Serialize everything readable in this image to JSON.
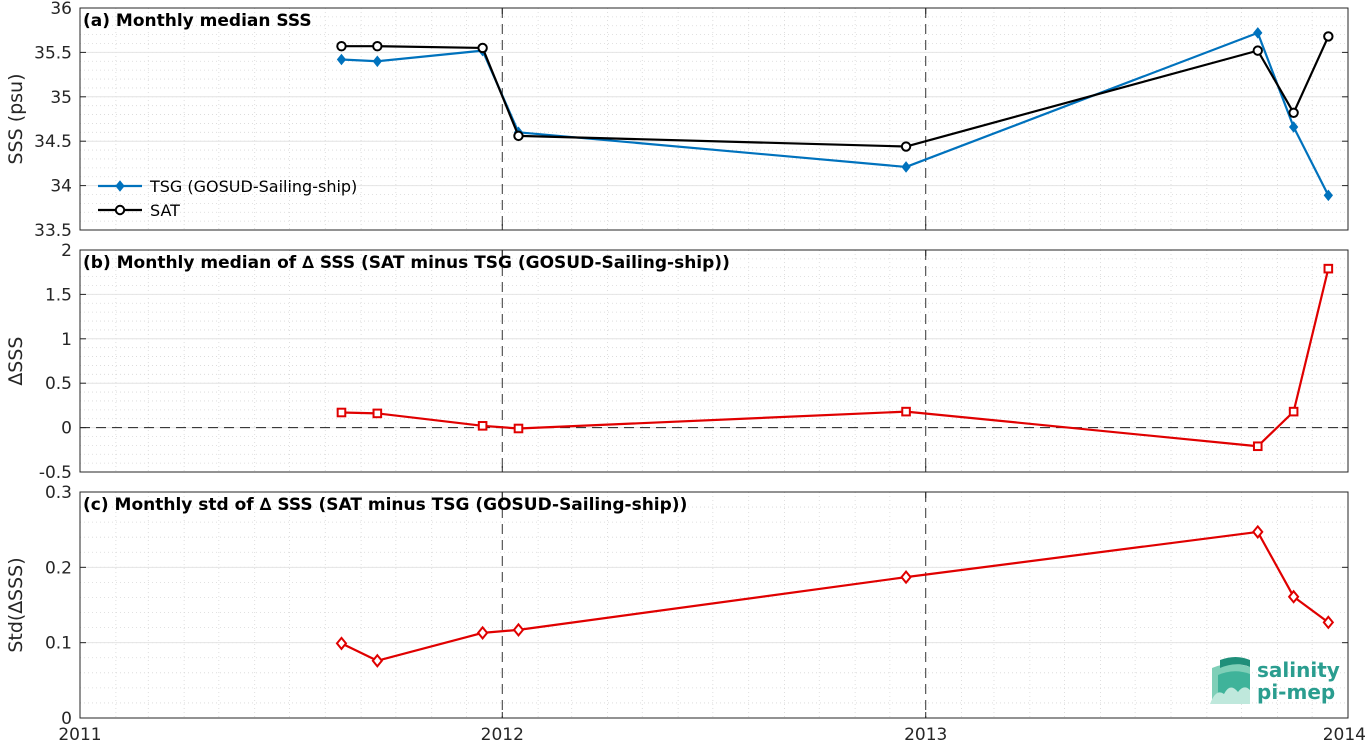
{
  "colors": {
    "tsg": "#0072BD",
    "sat": "#000000",
    "delta": "#E00000",
    "logo": "#2a9d8f"
  },
  "x_axis": {
    "range": [
      "2011-01-01",
      "2014-01-01"
    ],
    "tick_labels": [
      "2011",
      "2012",
      "2013",
      "2014"
    ],
    "year_lines": [
      "2012-01-01",
      "2013-01-01"
    ]
  },
  "logo": {
    "line1": "salinity",
    "line2": "pi-mep"
  },
  "chart_data": [
    {
      "type": "line",
      "panel": "a",
      "title": "(a) Monthly median SSS",
      "ylabel": "SSS (psu)",
      "ylim": [
        33.5,
        36
      ],
      "yticks": [
        33.5,
        34,
        34.5,
        35,
        35.5,
        36
      ],
      "ytick_labels": [
        "33.5",
        "34",
        "34.5",
        "35",
        "35.5",
        "36"
      ],
      "legend": "upper-left",
      "series": [
        {
          "name": "TSG (GOSUD-Sailing-ship)",
          "color": "#0072BD",
          "marker": "diamond-filled",
          "points": [
            {
              "x": "2011-08-15",
              "y": 35.42
            },
            {
              "x": "2011-09-15",
              "y": 35.4
            },
            {
              "x": "2011-12-15",
              "y": 35.52
            },
            {
              "x": "2012-01-15",
              "y": 34.6
            },
            {
              "x": "2012-12-15",
              "y": 34.21
            },
            {
              "x": "2013-10-15",
              "y": 35.72
            },
            {
              "x": "2013-11-15",
              "y": 34.66
            },
            {
              "x": "2013-12-15",
              "y": 33.89
            }
          ]
        },
        {
          "name": "SAT",
          "color": "#000000",
          "marker": "circle-open",
          "points": [
            {
              "x": "2011-08-15",
              "y": 35.57
            },
            {
              "x": "2011-09-15",
              "y": 35.57
            },
            {
              "x": "2011-12-15",
              "y": 35.55
            },
            {
              "x": "2012-01-15",
              "y": 34.56
            },
            {
              "x": "2012-12-15",
              "y": 34.44
            },
            {
              "x": "2013-10-15",
              "y": 35.52
            },
            {
              "x": "2013-11-15",
              "y": 34.82
            },
            {
              "x": "2013-12-15",
              "y": 35.68
            }
          ]
        }
      ]
    },
    {
      "type": "line",
      "panel": "b",
      "title": "(b) Monthly median of ∆ SSS (SAT minus TSG (GOSUD-Sailing-ship))",
      "ylabel": "∆SSS",
      "ylim": [
        -0.5,
        2
      ],
      "yticks": [
        -0.5,
        0,
        0.5,
        1,
        1.5,
        2
      ],
      "ytick_labels": [
        "-0.5",
        "0",
        "0.5",
        "1",
        "1.5",
        "2"
      ],
      "zero_line": true,
      "series": [
        {
          "color": "#E00000",
          "marker": "square-open",
          "points": [
            {
              "x": "2011-08-15",
              "y": 0.17
            },
            {
              "x": "2011-09-15",
              "y": 0.16
            },
            {
              "x": "2011-12-15",
              "y": 0.02
            },
            {
              "x": "2012-01-15",
              "y": -0.01
            },
            {
              "x": "2012-12-15",
              "y": 0.18
            },
            {
              "x": "2013-10-15",
              "y": -0.21
            },
            {
              "x": "2013-11-15",
              "y": 0.18
            },
            {
              "x": "2013-12-15",
              "y": 1.79
            }
          ]
        }
      ]
    },
    {
      "type": "line",
      "panel": "c",
      "title": "(c) Monthly std of ∆ SSS (SAT minus TSG (GOSUD-Sailing-ship))",
      "ylabel": "Std(∆SSS)",
      "ylim": [
        0,
        0.3
      ],
      "yticks": [
        0,
        0.1,
        0.2,
        0.3
      ],
      "ytick_labels": [
        "0",
        "0.1",
        "0.2",
        "0.3"
      ],
      "series": [
        {
          "color": "#E00000",
          "marker": "diamond-open",
          "points": [
            {
              "x": "2011-08-15",
              "y": 0.099
            },
            {
              "x": "2011-09-15",
              "y": 0.076
            },
            {
              "x": "2011-12-15",
              "y": 0.113
            },
            {
              "x": "2012-01-15",
              "y": 0.117
            },
            {
              "x": "2012-12-15",
              "y": 0.187
            },
            {
              "x": "2013-10-15",
              "y": 0.247
            },
            {
              "x": "2013-11-15",
              "y": 0.161
            },
            {
              "x": "2013-12-15",
              "y": 0.127
            }
          ]
        }
      ]
    }
  ]
}
